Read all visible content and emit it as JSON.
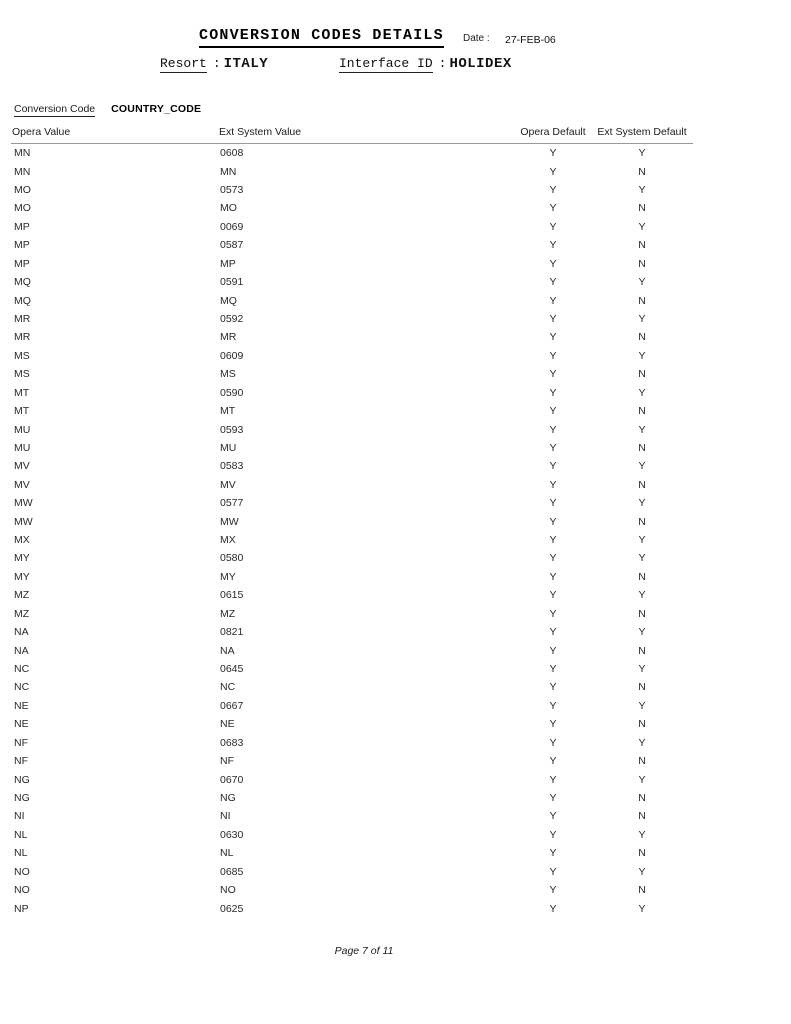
{
  "header": {
    "title": "CONVERSION CODES DETAILS",
    "date_label": "Date :",
    "date_value": "27-FEB-06",
    "resort_label": "Resort",
    "resort_colon": ":",
    "resort_value": "ITALY",
    "interface_label": "Interface ID",
    "interface_colon": ":",
    "interface_value": "HOLIDEX"
  },
  "section": {
    "conversion_code_label": "Conversion Code",
    "conversion_code_value": "COUNTRY_CODE"
  },
  "table": {
    "columns": [
      "Opera Value",
      "Ext System Value",
      "Opera Default",
      "Ext System Default"
    ],
    "rows": [
      [
        "MN",
        "0608",
        "Y",
        "Y"
      ],
      [
        "MN",
        "MN",
        "Y",
        "N"
      ],
      [
        "MO",
        "0573",
        "Y",
        "Y"
      ],
      [
        "MO",
        "MO",
        "Y",
        "N"
      ],
      [
        "MP",
        "0069",
        "Y",
        "Y"
      ],
      [
        "MP",
        "0587",
        "Y",
        "N"
      ],
      [
        "MP",
        "MP",
        "Y",
        "N"
      ],
      [
        "MQ",
        "0591",
        "Y",
        "Y"
      ],
      [
        "MQ",
        "MQ",
        "Y",
        "N"
      ],
      [
        "MR",
        "0592",
        "Y",
        "Y"
      ],
      [
        "MR",
        "MR",
        "Y",
        "N"
      ],
      [
        "MS",
        "0609",
        "Y",
        "Y"
      ],
      [
        "MS",
        "MS",
        "Y",
        "N"
      ],
      [
        "MT",
        "0590",
        "Y",
        "Y"
      ],
      [
        "MT",
        "MT",
        "Y",
        "N"
      ],
      [
        "MU",
        "0593",
        "Y",
        "Y"
      ],
      [
        "MU",
        "MU",
        "Y",
        "N"
      ],
      [
        "MV",
        "0583",
        "Y",
        "Y"
      ],
      [
        "MV",
        "MV",
        "Y",
        "N"
      ],
      [
        "MW",
        "0577",
        "Y",
        "Y"
      ],
      [
        "MW",
        "MW",
        "Y",
        "N"
      ],
      [
        "MX",
        "MX",
        "Y",
        "Y"
      ],
      [
        "MY",
        "0580",
        "Y",
        "Y"
      ],
      [
        "MY",
        "MY",
        "Y",
        "N"
      ],
      [
        "MZ",
        "0615",
        "Y",
        "Y"
      ],
      [
        "MZ",
        "MZ",
        "Y",
        "N"
      ],
      [
        "NA",
        "0821",
        "Y",
        "Y"
      ],
      [
        "NA",
        "NA",
        "Y",
        "N"
      ],
      [
        "NC",
        "0645",
        "Y",
        "Y"
      ],
      [
        "NC",
        "NC",
        "Y",
        "N"
      ],
      [
        "NE",
        "0667",
        "Y",
        "Y"
      ],
      [
        "NE",
        "NE",
        "Y",
        "N"
      ],
      [
        "NF",
        "0683",
        "Y",
        "Y"
      ],
      [
        "NF",
        "NF",
        "Y",
        "N"
      ],
      [
        "NG",
        "0670",
        "Y",
        "Y"
      ],
      [
        "NG",
        "NG",
        "Y",
        "N"
      ],
      [
        "NI",
        "NI",
        "Y",
        "N"
      ],
      [
        "NL",
        "0630",
        "Y",
        "Y"
      ],
      [
        "NL",
        "NL",
        "Y",
        "N"
      ],
      [
        "NO",
        "0685",
        "Y",
        "Y"
      ],
      [
        "NO",
        "NO",
        "Y",
        "N"
      ],
      [
        "NP",
        "0625",
        "Y",
        "Y"
      ]
    ]
  },
  "footer": {
    "page_text": "Page 7 of 11"
  },
  "colors": {
    "background": "#ffffff",
    "text": "#1c1c1c",
    "title_underline": "#000000",
    "header_rule": "#9a9a9a"
  }
}
